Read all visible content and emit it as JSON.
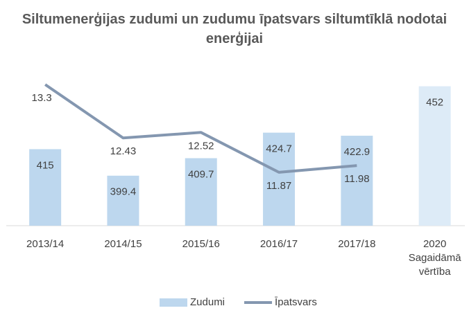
{
  "chart_data": {
    "type": "bar-line",
    "title": "Siltumenerģijas zudumi un zudumu īpatsvars siltumtīklā nodotai enerģijai",
    "categories": [
      "2013/14",
      "2014/15",
      "2015/16",
      "2016/17",
      "2017/18",
      "2020 Sagaidāmā vērtība"
    ],
    "series": [
      {
        "name": "Zudumi",
        "type": "bar",
        "color": "#bdd7ee",
        "colors": [
          "#bdd7ee",
          "#bdd7ee",
          "#bdd7ee",
          "#bdd7ee",
          "#bdd7ee",
          "#ddebf7"
        ],
        "values": [
          415,
          399.4,
          409.7,
          424.7,
          422.9,
          452
        ]
      },
      {
        "name": "Īpatsvars",
        "type": "line",
        "axis": "y2",
        "color": "#8497b0",
        "values": [
          13.3,
          12.43,
          12.52,
          11.87,
          11.98,
          null
        ]
      }
    ],
    "ylim": [
      370,
      462
    ],
    "y2lim": [
      11,
      13.55
    ],
    "legend": "bottom"
  }
}
